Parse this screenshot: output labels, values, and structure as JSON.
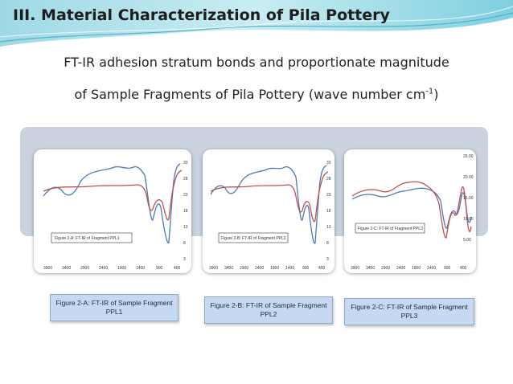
{
  "title": "III. Material Characterization of Pila Pottery",
  "subtitle": {
    "line1": "FT-IR adhesion stratum bonds and proportionate magnitude",
    "line2_main": "of Sample Fragments of Pila Pottery (wave number cm",
    "line2_sup": "-1",
    "line2_end": ")"
  },
  "colors": {
    "series_a": "#4a7ab8",
    "series_b": "#c0504d",
    "band": "#c9d2de",
    "caption_bg": "#c6d9f0"
  },
  "panels": [
    {
      "inbox_label": "Figure 2-A: FT-IR of Fragment PPL1",
      "caption_line1": "Figure 2-A: FT-IR of Sample Fragment",
      "caption_line2": "PPL1",
      "x_ticks": [
        "3900",
        "3400",
        "2900",
        "2400",
        "1900",
        "1400",
        "900",
        "400"
      ],
      "y_ticks": [
        "33",
        "28",
        "23",
        "18",
        "13",
        "8",
        "3"
      ]
    },
    {
      "inbox_label": "Figure 2-B: FT-IR of Fragment PPL2",
      "caption_line1": "Figure 2-B: FT-IR of Sample Fragment",
      "caption_line2": "PPL2",
      "x_ticks": [
        "3900",
        "3400",
        "2900",
        "2400",
        "1900",
        "1400",
        "900",
        "400"
      ],
      "y_ticks": [
        "33",
        "28",
        "23",
        "18",
        "13",
        "8",
        "3"
      ]
    },
    {
      "inbox_label": "Figure 2-C: FT-IR of Fragment PPL3",
      "caption_line1": "Figure 2-C: FT-IR of  Sample Fragment",
      "caption_line2": "PPL3",
      "x_ticks": [
        "3900",
        "3400",
        "2900",
        "2400",
        "1900",
        "1400",
        "900",
        "400"
      ],
      "y_ticks": [
        "25.00",
        "20.00",
        "15.00",
        "10.00",
        "5.00"
      ]
    }
  ]
}
